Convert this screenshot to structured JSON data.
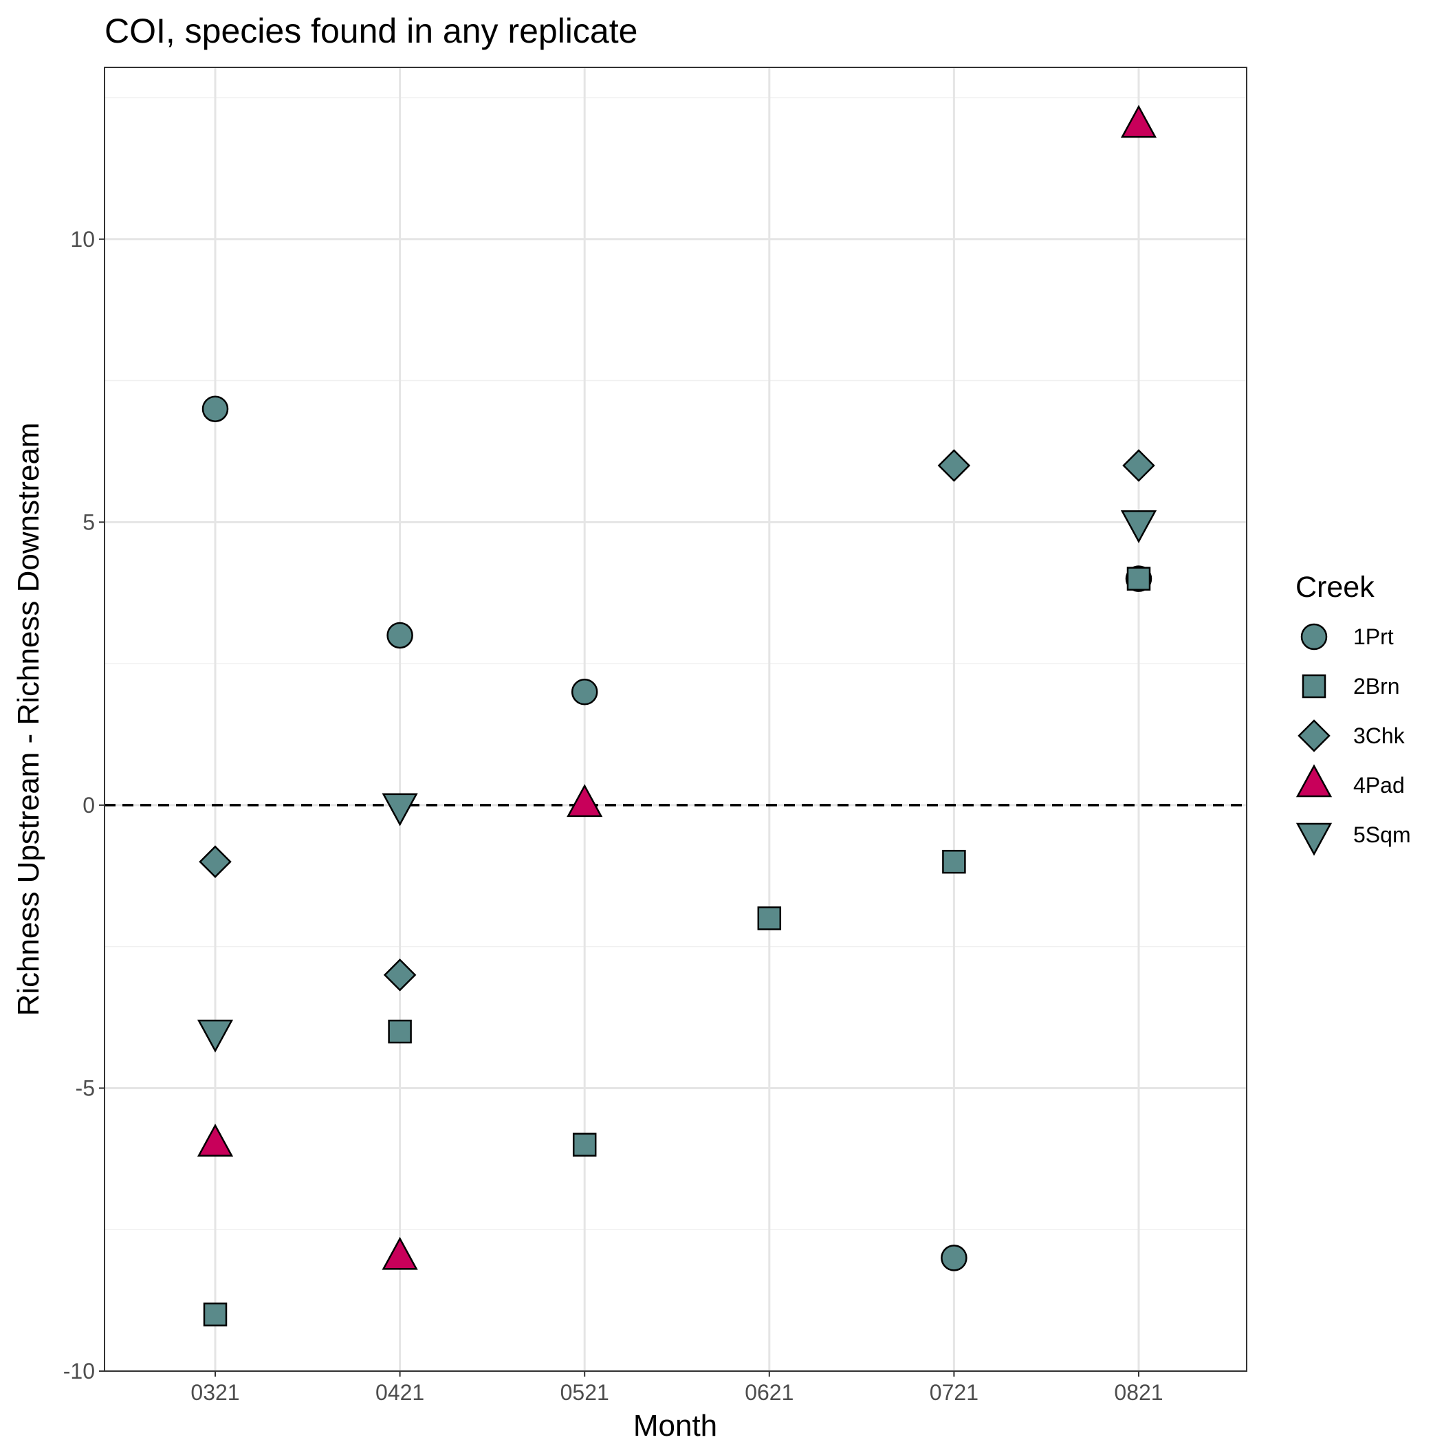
{
  "chart_data": {
    "type": "scatter",
    "title": "COI, species found in any replicate",
    "xlabel": "Month",
    "ylabel": "Richness Upstream - Richness Downstream",
    "categories": [
      "0321",
      "0421",
      "0521",
      "0621",
      "0721",
      "0821"
    ],
    "ylim": [
      -10,
      12.5
    ],
    "yticks": [
      -10,
      -5,
      0,
      5,
      10
    ],
    "ytick_labels": [
      "-10",
      "-5",
      "0",
      "5",
      "10"
    ],
    "grid": true,
    "reference_line": {
      "y": 0,
      "style": "dashed"
    },
    "legend": {
      "title": "Creek",
      "placement": "right"
    },
    "series": [
      {
        "name": "1Prt",
        "shape": "circle",
        "color": "#5a8a8a",
        "points": [
          [
            "0321",
            7
          ],
          [
            "0421",
            3
          ],
          [
            "0521",
            2
          ],
          [
            "0721",
            -8
          ],
          [
            "0821",
            4
          ]
        ]
      },
      {
        "name": "2Brn",
        "shape": "square",
        "color": "#5a8a8a",
        "points": [
          [
            "0321",
            -9
          ],
          [
            "0421",
            -4
          ],
          [
            "0521",
            -6
          ],
          [
            "0621",
            -2
          ],
          [
            "0721",
            -1
          ],
          [
            "0821",
            4
          ]
        ]
      },
      {
        "name": "3Chk",
        "shape": "diamond",
        "color": "#5a8a8a",
        "points": [
          [
            "0321",
            -1
          ],
          [
            "0421",
            -3
          ],
          [
            "0721",
            6
          ],
          [
            "0821",
            6
          ]
        ]
      },
      {
        "name": "4Pad",
        "shape": "triangle-up",
        "color": "#c8005a",
        "points": [
          [
            "0321",
            -6
          ],
          [
            "0421",
            -8
          ],
          [
            "0521",
            0
          ],
          [
            "0821",
            12
          ]
        ]
      },
      {
        "name": "5Sqm",
        "shape": "triangle-down",
        "color": "#5a8a8a",
        "points": [
          [
            "0321",
            -4
          ],
          [
            "0421",
            0
          ],
          [
            "0821",
            5
          ]
        ]
      }
    ]
  }
}
